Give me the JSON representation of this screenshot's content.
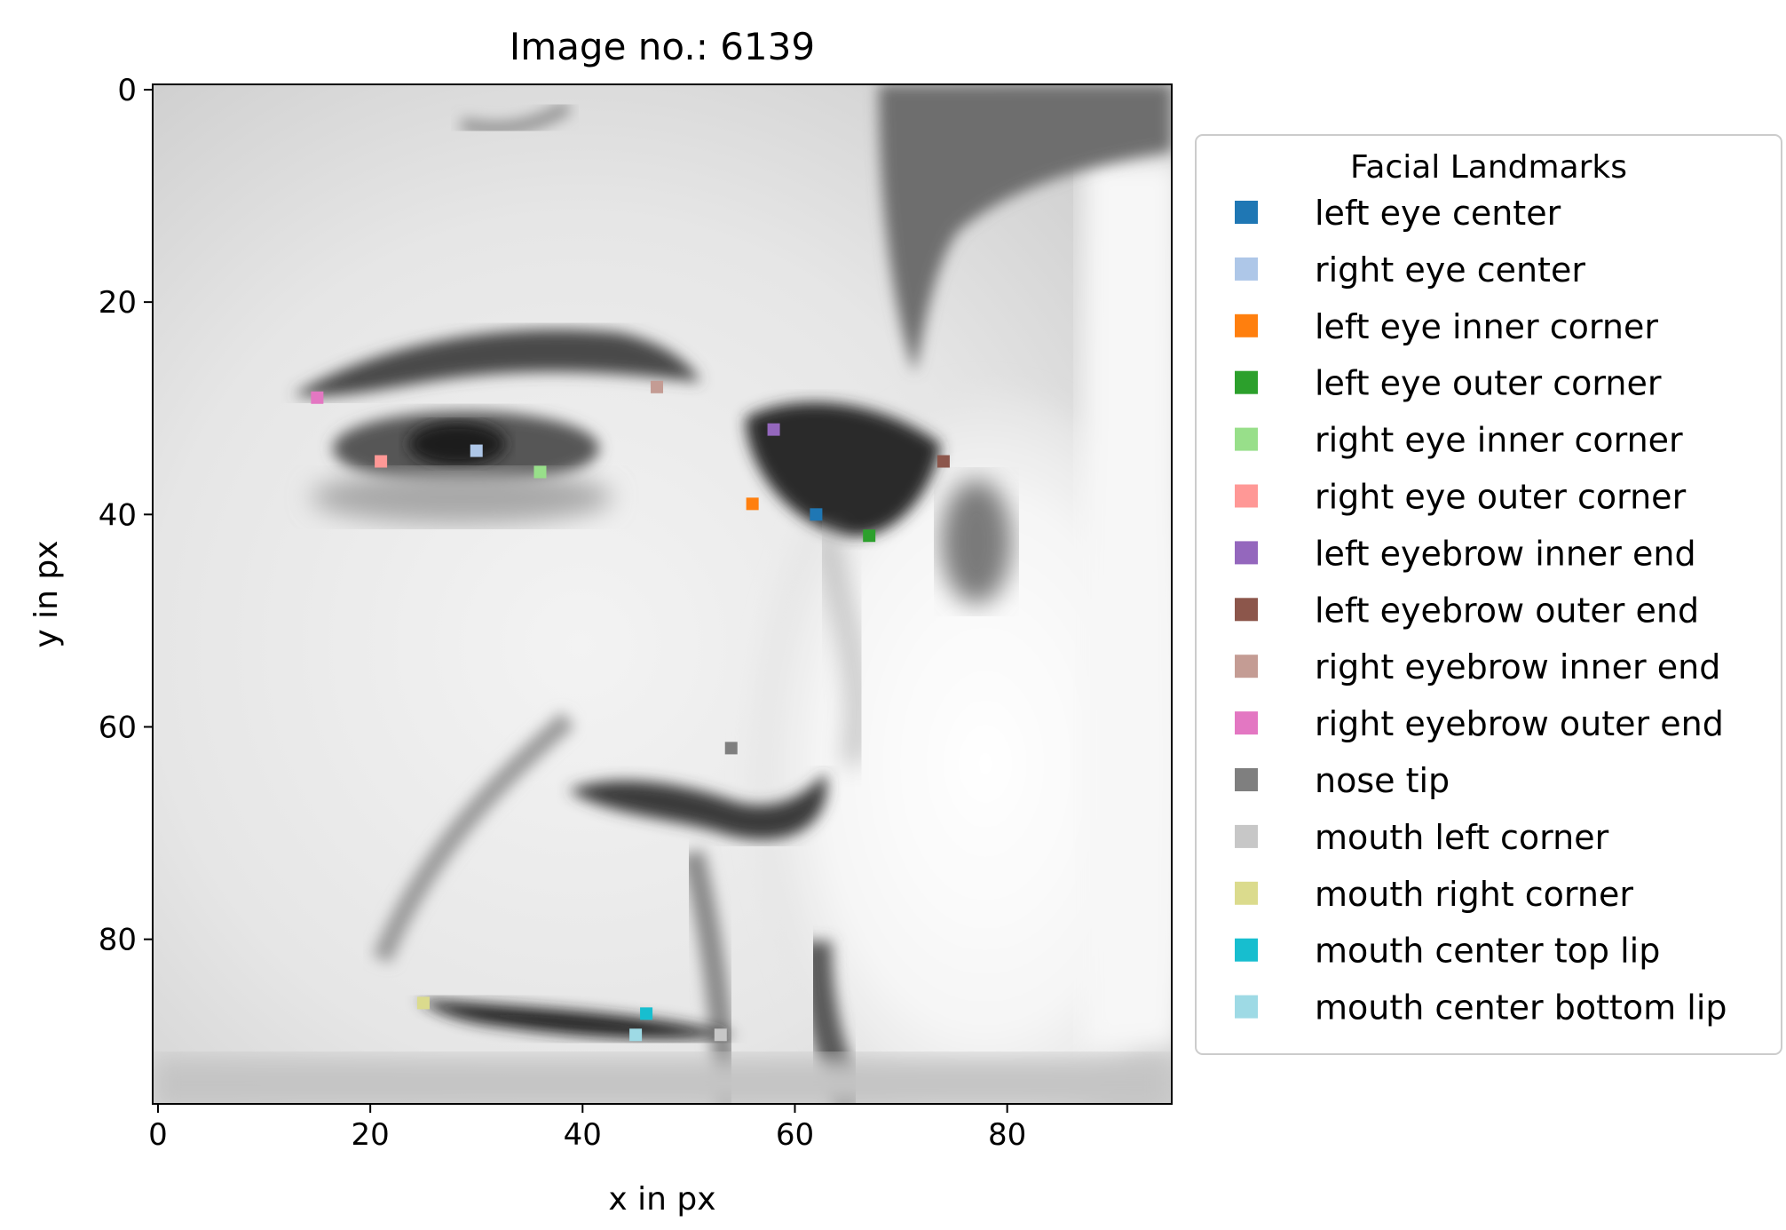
{
  "chart_data": {
    "type": "scatter",
    "title": "Image no.: 6139",
    "xlabel": "x in px",
    "ylabel": "y in px",
    "xlim": [
      -0.5,
      95.5
    ],
    "ylim": [
      95.5,
      -0.5
    ],
    "x_ticks": [
      0,
      20,
      40,
      60,
      80
    ],
    "y_ticks": [
      0,
      20,
      40,
      60,
      80
    ],
    "y_axis_inverted": true,
    "grid": false,
    "background": "grayscale face photograph (96x96 px)",
    "legend": {
      "title": "Facial Landmarks",
      "placement": "outside right"
    },
    "series": [
      {
        "name": "left eye center",
        "x": 62,
        "y": 40,
        "color": "#1f77b4"
      },
      {
        "name": "right eye center",
        "x": 30,
        "y": 34,
        "color": "#aec7e8"
      },
      {
        "name": "left eye inner corner",
        "x": 56,
        "y": 39,
        "color": "#ff7f0e"
      },
      {
        "name": "left eye outer corner",
        "x": 67,
        "y": 42,
        "color": "#2ca02c"
      },
      {
        "name": "right eye inner corner",
        "x": 36,
        "y": 36,
        "color": "#98df8a"
      },
      {
        "name": "right eye outer corner",
        "x": 21,
        "y": 35,
        "color": "#ff9896"
      },
      {
        "name": "left eyebrow inner end",
        "x": 58,
        "y": 32,
        "color": "#9467bd"
      },
      {
        "name": "left eyebrow outer end",
        "x": 74,
        "y": 35,
        "color": "#8c564b"
      },
      {
        "name": "right eyebrow inner end",
        "x": 47,
        "y": 28,
        "color": "#c49c94"
      },
      {
        "name": "right eyebrow outer end",
        "x": 15,
        "y": 29,
        "color": "#e377c2"
      },
      {
        "name": "nose tip",
        "x": 54,
        "y": 62,
        "color": "#7f7f7f"
      },
      {
        "name": "mouth left corner",
        "x": 53,
        "y": 89,
        "color": "#c7c7c7"
      },
      {
        "name": "mouth right corner",
        "x": 25,
        "y": 86,
        "color": "#dbdb8d"
      },
      {
        "name": "mouth center top lip",
        "x": 46,
        "y": 87,
        "color": "#17becf"
      },
      {
        "name": "mouth center bottom lip",
        "x": 45,
        "y": 89,
        "color": "#9edae5"
      }
    ]
  }
}
